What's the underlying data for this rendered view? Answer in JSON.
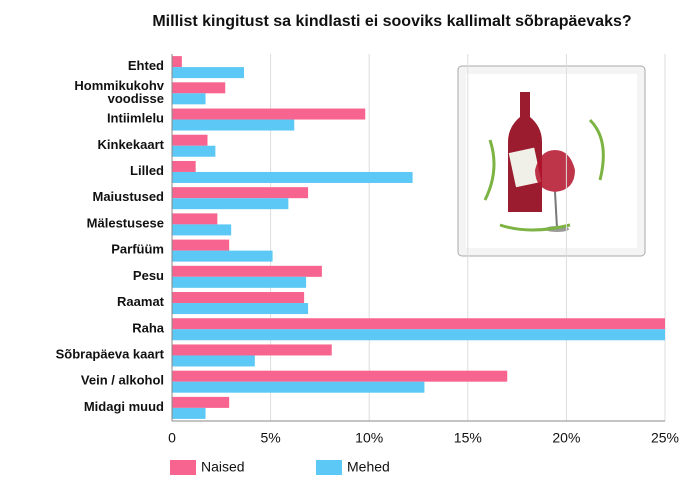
{
  "chart_data": {
    "type": "bar",
    "orientation": "horizontal",
    "title": "Millist kingitust sa kindlasti ei sooviks kallimalt sõbrapäevaks?",
    "categories": [
      "Ehted",
      "Hommikukohv\nvoodisse",
      "Intiimlelu",
      "Kinkekaart",
      "Lilled",
      "Maiustused",
      "Mälestusese",
      "Parfüüm",
      "Pesu",
      "Raamat",
      "Raha",
      "Sõbrapäeva kaart",
      "Vein / alkohol",
      "Midagi muud"
    ],
    "series": [
      {
        "name": "Naised",
        "color": "#f7648f",
        "values": [
          0.5,
          2.7,
          9.8,
          1.8,
          1.2,
          6.9,
          2.3,
          2.9,
          7.6,
          6.7,
          25,
          8.1,
          17.0,
          2.9
        ]
      },
      {
        "name": "Mehed",
        "color": "#5bc8f5",
        "values": [
          3.65,
          1.7,
          6.2,
          2.2,
          12.2,
          5.9,
          3.0,
          5.1,
          6.8,
          6.9,
          25,
          4.2,
          12.8,
          1.7
        ]
      }
    ],
    "xlim": [
      0,
      25
    ],
    "xticks": [
      0,
      {
        "value": 5,
        "label": "5%"
      },
      {
        "value": 10,
        "label": "10%"
      },
      {
        "value": 15,
        "label": "15%"
      },
      {
        "value": 20,
        "label": "20%"
      },
      {
        "value": 25,
        "label": "25%"
      }
    ],
    "grid": true,
    "legend": "bottom"
  }
}
